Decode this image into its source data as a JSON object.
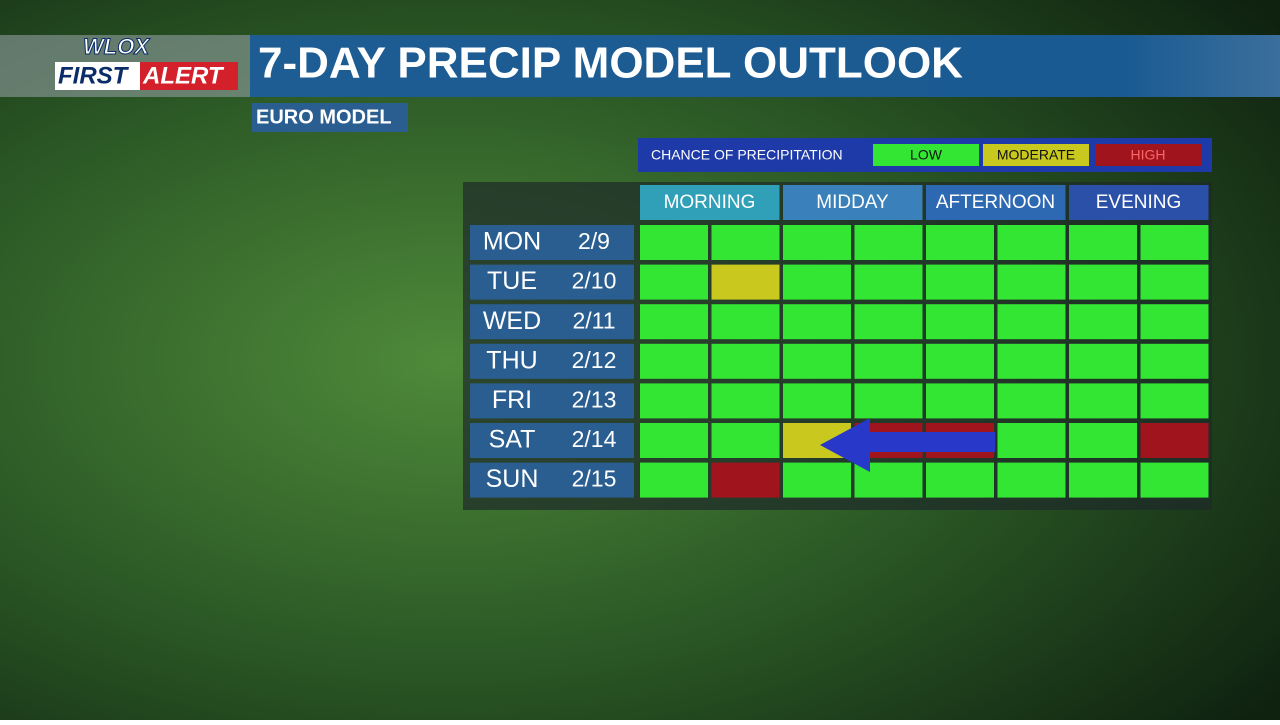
{
  "logo": {
    "top": "WLOX",
    "first": "FIRST",
    "alert": "ALERT"
  },
  "header": {
    "title": "7-DAY PRECIP MODEL OUTLOOK",
    "subtitle": "EURO MODEL"
  },
  "legend": {
    "title": "CHANCE OF PRECIPITATION",
    "levels": [
      {
        "name": "LOW",
        "color": "#33e633"
      },
      {
        "name": "MODERATE",
        "color": "#c8c81e"
      },
      {
        "name": "HIGH",
        "color": "#a0141e"
      }
    ]
  },
  "periods": [
    {
      "name": "MORNING",
      "color": "#2fa0b8"
    },
    {
      "name": "MIDDAY",
      "color": "#3a80ba"
    },
    {
      "name": "AFTERNOON",
      "color": "#2d68b2"
    },
    {
      "name": "EVENING",
      "color": "#2a50a8"
    }
  ],
  "rows": [
    {
      "day": "MON",
      "date": "2/9",
      "cells": [
        0,
        0,
        0,
        0,
        0,
        0,
        0,
        0
      ]
    },
    {
      "day": "TUE",
      "date": "2/10",
      "cells": [
        0,
        1,
        0,
        0,
        0,
        0,
        0,
        0
      ]
    },
    {
      "day": "WED",
      "date": "2/11",
      "cells": [
        0,
        0,
        0,
        0,
        0,
        0,
        0,
        0
      ]
    },
    {
      "day": "THU",
      "date": "2/12",
      "cells": [
        0,
        0,
        0,
        0,
        0,
        0,
        0,
        0
      ]
    },
    {
      "day": "FRI",
      "date": "2/13",
      "cells": [
        0,
        0,
        0,
        0,
        0,
        0,
        0,
        0
      ]
    },
    {
      "day": "SAT",
      "date": "2/14",
      "cells": [
        0,
        0,
        1,
        2,
        2,
        0,
        0,
        2
      ]
    },
    {
      "day": "SUN",
      "date": "2/15",
      "cells": [
        0,
        2,
        0,
        0,
        0,
        0,
        0,
        0
      ]
    }
  ]
}
